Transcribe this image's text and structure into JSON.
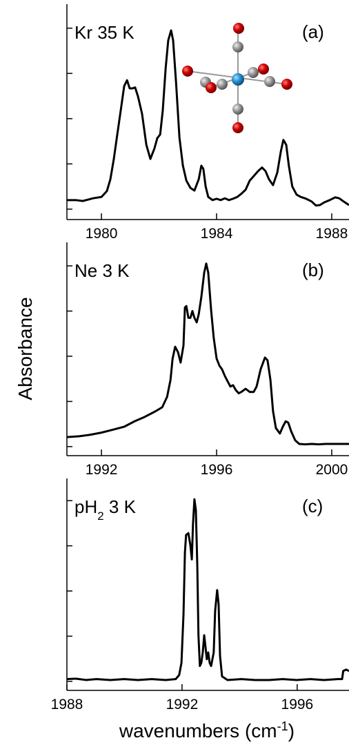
{
  "chart_data": [
    {
      "type": "line",
      "label": {
        "text": "Kr 35 K"
      },
      "panel": "(a)",
      "color": "#000000",
      "xlim": [
        1978.8,
        1988.6
      ],
      "xticks": [
        1980,
        1984,
        1988
      ],
      "ylim": [
        -0.23,
        4.47
      ],
      "yticks": [
        0,
        1,
        2,
        3,
        4
      ],
      "grid": false,
      "x": [
        1978.8,
        1979.11,
        1979.35,
        1979.71,
        1980.0,
        1980.19,
        1980.31,
        1980.43,
        1980.55,
        1980.67,
        1980.79,
        1980.89,
        1980.98,
        1981.08,
        1981.17,
        1981.27,
        1981.41,
        1981.56,
        1981.7,
        1981.84,
        1981.94,
        1982.04,
        1982.13,
        1982.23,
        1982.32,
        1982.42,
        1982.49,
        1982.59,
        1982.71,
        1982.83,
        1982.95,
        1983.09,
        1983.23,
        1983.38,
        1983.47,
        1983.54,
        1983.62,
        1983.71,
        1983.86,
        1984.0,
        1984.14,
        1984.29,
        1984.43,
        1984.57,
        1984.72,
        1984.86,
        1985.01,
        1985.15,
        1985.29,
        1985.44,
        1985.58,
        1985.7,
        1985.82,
        1985.96,
        1986.11,
        1986.23,
        1986.32,
        1986.42,
        1986.51,
        1986.63,
        1986.78,
        1986.92,
        1987.11,
        1987.3,
        1987.45,
        1987.59,
        1987.74,
        1987.93,
        1988.12,
        1988.26,
        1988.41,
        1988.6
      ],
      "values": [
        0.2,
        0.2,
        0.18,
        0.24,
        0.27,
        0.4,
        0.66,
        1.11,
        1.65,
        2.18,
        2.72,
        2.85,
        2.67,
        2.67,
        2.69,
        2.49,
        2.11,
        1.42,
        1.11,
        1.34,
        1.57,
        1.65,
        2.18,
        3.11,
        3.73,
        3.95,
        3.73,
        2.82,
        1.58,
        0.96,
        0.63,
        0.47,
        0.41,
        0.66,
        0.96,
        0.89,
        0.5,
        0.27,
        0.2,
        0.23,
        0.2,
        0.24,
        0.2,
        0.23,
        0.27,
        0.34,
        0.43,
        0.63,
        0.73,
        0.84,
        0.92,
        0.84,
        0.66,
        0.53,
        0.81,
        1.27,
        1.53,
        1.42,
        0.96,
        0.5,
        0.32,
        0.27,
        0.23,
        0.17,
        0.08,
        0.09,
        0.15,
        0.2,
        0.26,
        0.24,
        0.17,
        0.09
      ]
    },
    {
      "type": "line",
      "label": {
        "text": "Ne 3 K"
      },
      "panel": "(b)",
      "ylabel": "Absorbance",
      "color": "#000000",
      "xlim": [
        1990.8,
        2000.6
      ],
      "xticks": [
        1992,
        1996,
        2000
      ],
      "ylim": [
        -0.2,
        4.46
      ],
      "yticks": [
        0,
        1,
        2,
        3,
        4
      ],
      "grid": false,
      "x": [
        1990.8,
        1991.23,
        1991.59,
        1992.0,
        1992.43,
        1992.79,
        1993.15,
        1993.51,
        1993.87,
        1994.11,
        1994.28,
        1994.4,
        1994.47,
        1994.56,
        1994.66,
        1994.75,
        1994.85,
        1994.9,
        1994.95,
        1995.02,
        1995.09,
        1995.16,
        1995.23,
        1995.31,
        1995.38,
        1995.47,
        1995.57,
        1995.64,
        1995.71,
        1995.81,
        1995.9,
        1996.0,
        1996.1,
        1996.19,
        1996.29,
        1996.38,
        1996.48,
        1996.57,
        1996.67,
        1996.77,
        1996.86,
        1997.01,
        1997.15,
        1997.29,
        1997.39,
        1997.53,
        1997.68,
        1997.77,
        1997.87,
        1997.96,
        1998.06,
        1998.2,
        1998.3,
        1998.4,
        1998.49,
        1998.59,
        1998.73,
        1998.87,
        1999.07,
        1999.31,
        1999.54,
        1999.78,
        2000.02,
        2000.26,
        2000.6
      ],
      "values": [
        0.21,
        0.23,
        0.26,
        0.31,
        0.38,
        0.44,
        0.56,
        0.66,
        0.78,
        0.87,
        1.1,
        1.48,
        1.94,
        2.21,
        2.09,
        1.86,
        2.24,
        3.08,
        3.11,
        2.85,
        2.85,
        3.0,
        2.85,
        2.75,
        2.93,
        3.31,
        3.85,
        4.05,
        3.85,
        3.02,
        2.41,
        1.95,
        1.79,
        1.71,
        1.56,
        1.45,
        1.33,
        1.36,
        1.25,
        1.18,
        1.21,
        1.28,
        1.21,
        1.21,
        1.33,
        1.71,
        1.97,
        1.91,
        1.48,
        0.79,
        0.41,
        0.29,
        0.44,
        0.56,
        0.53,
        0.34,
        0.14,
        0.06,
        0.05,
        0.06,
        0.05,
        0.06,
        0.06,
        0.06,
        0.06
      ]
    },
    {
      "type": "line",
      "label": {
        "text": "pH",
        "sub": "2",
        "after": " 3 K"
      },
      "panel": "(c)",
      "xlabel": {
        "text": "wavenumbers (cm",
        "sup": "-1",
        "after": ")"
      },
      "color": "#000000",
      "xlim": [
        1988,
        1997.8
      ],
      "xticks": [
        1988,
        1992,
        1996
      ],
      "ylim": [
        -0.2,
        4.43
      ],
      "yticks": [
        0,
        1,
        2,
        3,
        4
      ],
      "grid": false,
      "x": [
        1988.0,
        1988.31,
        1988.67,
        1989.03,
        1989.51,
        1989.99,
        1990.47,
        1990.95,
        1991.43,
        1991.78,
        1991.9,
        1991.98,
        1992.05,
        1992.1,
        1992.14,
        1992.22,
        1992.29,
        1992.34,
        1992.38,
        1992.43,
        1992.48,
        1992.53,
        1992.57,
        1992.62,
        1992.67,
        1992.72,
        1992.77,
        1992.81,
        1992.86,
        1992.91,
        1992.96,
        1993.01,
        1993.1,
        1993.15,
        1993.22,
        1993.27,
        1993.32,
        1993.39,
        1993.58,
        1994.06,
        1994.54,
        1995.02,
        1995.5,
        1995.98,
        1996.46,
        1996.93,
        1997.41,
        1997.56,
        1997.6,
        1997.7,
        1997.8
      ],
      "values": [
        0.05,
        0.06,
        0.03,
        0.05,
        0.03,
        0.05,
        0.03,
        0.05,
        0.03,
        0.05,
        0.14,
        0.41,
        1.48,
        2.85,
        3.24,
        3.28,
        3.01,
        2.7,
        3.47,
        4.03,
        3.79,
        2.56,
        1.02,
        0.34,
        0.41,
        0.64,
        1.02,
        0.79,
        0.49,
        0.64,
        0.41,
        0.34,
        0.64,
        1.56,
        2.02,
        1.71,
        0.56,
        0.11,
        0.03,
        0.05,
        0.03,
        0.03,
        0.05,
        0.03,
        0.05,
        0.03,
        0.05,
        0.05,
        0.23,
        0.26,
        0.23
      ]
    }
  ]
}
